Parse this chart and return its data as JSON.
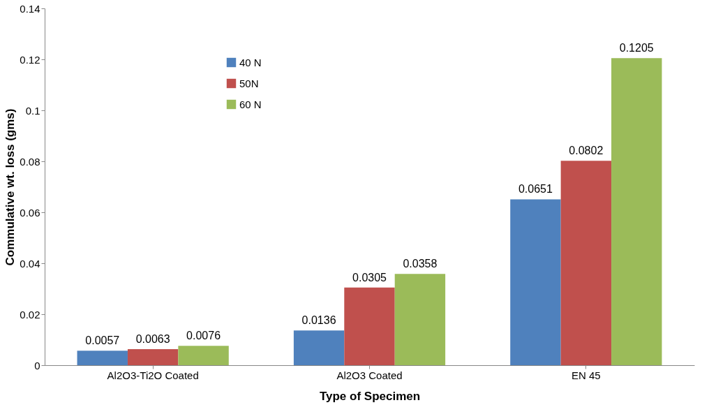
{
  "chart_data": {
    "type": "bar",
    "xlabel": "Type of Specimen",
    "ylabel": "Commulative wt. loss (gms)",
    "categories": [
      "Al2O3-Ti2O Coated",
      "Al2O3 Coated",
      "EN 45"
    ],
    "series": [
      {
        "name": "40 N",
        "color": "#4f81bd",
        "values": [
          0.0057,
          0.0136,
          0.0651
        ]
      },
      {
        "name": "50N",
        "color": "#c0504d",
        "values": [
          0.0063,
          0.0305,
          0.0802
        ]
      },
      {
        "name": "60 N",
        "color": "#9bbb59",
        "values": [
          0.0076,
          0.0358,
          0.1205
        ]
      }
    ],
    "ylim": [
      0,
      0.14
    ],
    "yticks": [
      0,
      0.02,
      0.04,
      0.06,
      0.08,
      0.1,
      0.12,
      0.14
    ],
    "data_labels": true,
    "grid": false,
    "legend": "top left"
  }
}
